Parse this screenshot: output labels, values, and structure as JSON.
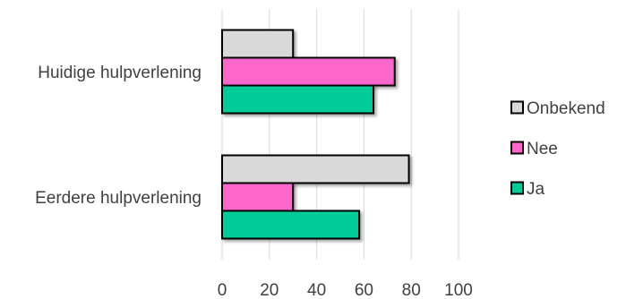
{
  "chart_data": {
    "type": "bar",
    "orientation": "horizontal",
    "categories": [
      "Huidige hulpverlening",
      "Eerdere hulpverlening"
    ],
    "series": [
      {
        "name": "Onbekend",
        "values": [
          30,
          79
        ],
        "color": "#D9D9D9"
      },
      {
        "name": "Nee",
        "values": [
          73,
          30
        ],
        "color": "#FF66CC"
      },
      {
        "name": "Ja",
        "values": [
          64,
          58
        ],
        "color": "#00CC99"
      }
    ],
    "x_ticks": [
      0,
      20,
      40,
      60,
      80,
      100
    ],
    "xlim": [
      0,
      100
    ],
    "title": "",
    "xlabel": "",
    "ylabel": "",
    "grid": "vertical",
    "legend_position": "right"
  }
}
